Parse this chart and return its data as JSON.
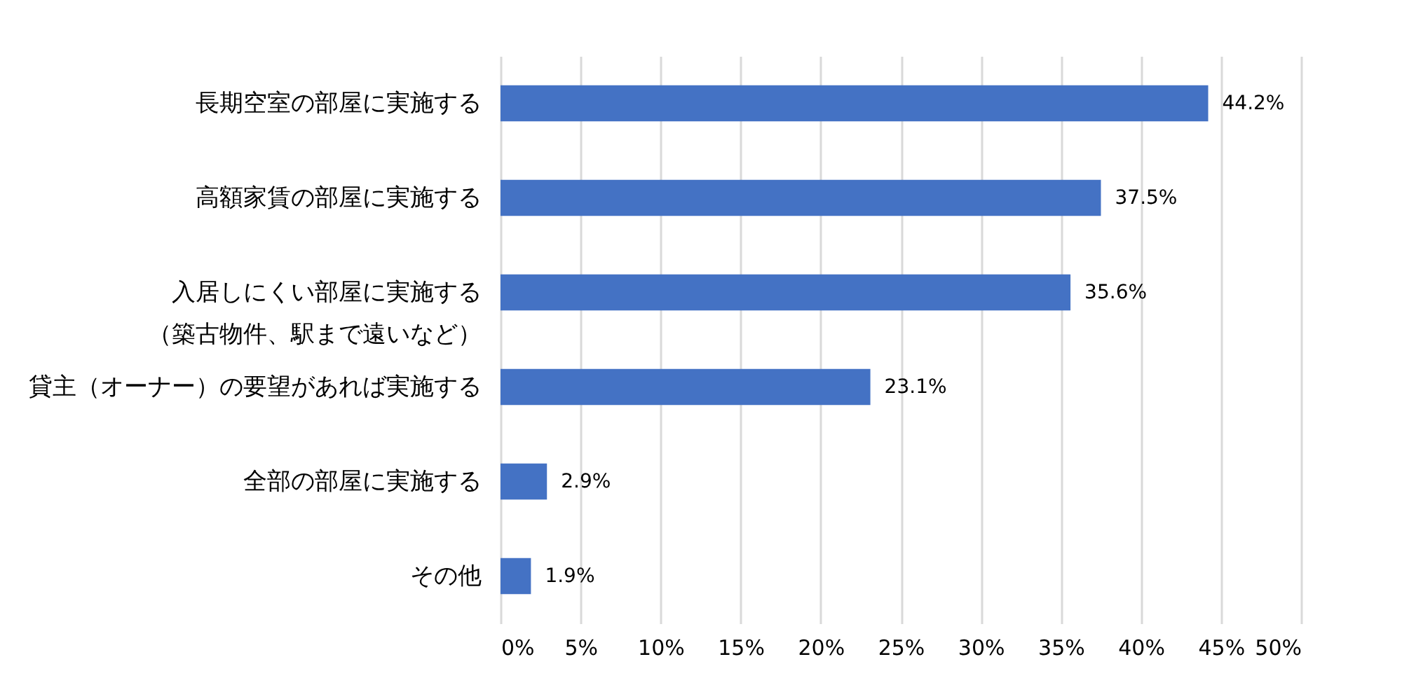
{
  "chart_data": {
    "type": "bar",
    "orientation": "horizontal",
    "categories": [
      "長期空室の部屋に実施する",
      "高額家賃の部屋に実施する",
      "入居しにくい部屋に実施する（築古物件、駅まで遠いなど）",
      "貸主（オーナー）の要望があれば実施する",
      "全部の部屋に実施する",
      "その他"
    ],
    "values": [
      44.2,
      37.5,
      35.6,
      23.1,
      2.9,
      1.9
    ],
    "value_labels": [
      "44.2%",
      "37.5%",
      "35.6%",
      "23.1%",
      "2.9%",
      "1.9%"
    ],
    "color": "#4472c4",
    "xlim": [
      0,
      50
    ],
    "xticks": [
      {
        "value": 0,
        "label": "0%"
      },
      {
        "value": 5,
        "label": "5%"
      },
      {
        "value": 10,
        "label": "10%"
      },
      {
        "value": 15,
        "label": "15%"
      },
      {
        "value": 20,
        "label": "20%"
      },
      {
        "value": 25,
        "label": "25%"
      },
      {
        "value": 30,
        "label": "30%"
      },
      {
        "value": 35,
        "label": "35%"
      },
      {
        "value": 40,
        "label": "40%"
      },
      {
        "value": 45,
        "label": "45%"
      },
      {
        "value": 50,
        "label": "50%"
      }
    ],
    "grid": "x"
  }
}
